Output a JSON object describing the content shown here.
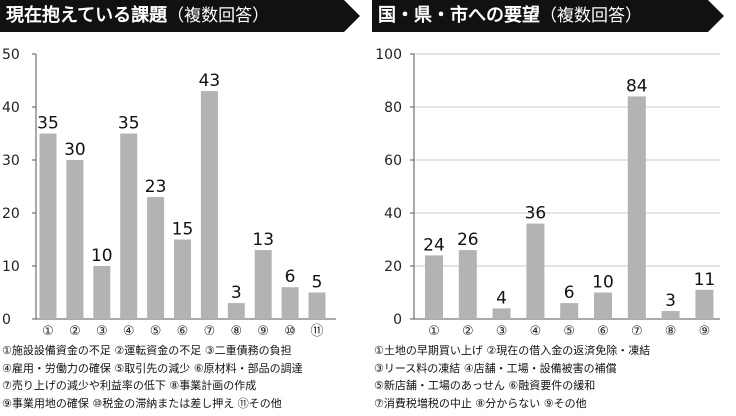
{
  "chart_data": [
    {
      "type": "bar",
      "title": "現在抱えている課題",
      "title_note": "（複数回答）",
      "categories": [
        "①",
        "②",
        "③",
        "④",
        "⑤",
        "⑥",
        "⑦",
        "⑧",
        "⑨",
        "⑩",
        "⑪"
      ],
      "values": [
        35,
        30,
        10,
        35,
        23,
        15,
        43,
        3,
        13,
        6,
        5
      ],
      "ylim": [
        0,
        50
      ],
      "yticks": [
        0,
        10,
        20,
        30,
        40,
        50
      ],
      "grid": false,
      "bar_color": "#b3b3b3",
      "notes": [
        "①施設設備資金の不足 ②運転資金の不足 ③二重債務の負担",
        "④雇用・労働力の確保 ⑤取引先の減少 ⑥原材料・部品の調達",
        "⑦売り上げの減少や利益率の低下 ⑧事業計画の作成",
        "⑨事業用地の確保 ⑩税金の滞納または差し押え ⑪その他"
      ]
    },
    {
      "type": "bar",
      "title": "国・県・市への要望",
      "title_note": "（複数回答）",
      "categories": [
        "①",
        "②",
        "③",
        "④",
        "⑤",
        "⑥",
        "⑦",
        "⑧",
        "⑨"
      ],
      "values": [
        24,
        26,
        4,
        36,
        6,
        10,
        84,
        3,
        11
      ],
      "ylim": [
        0,
        100
      ],
      "yticks": [
        0,
        20,
        40,
        60,
        80,
        100
      ],
      "grid": true,
      "bar_color": "#b3b3b3",
      "notes": [
        "①土地の早期買い上げ ②現在の借入金の返済免除・凍結",
        "③リース料の凍結 ④店舗・工場・設備被害の補償",
        "⑤新店舗・工場のあっせん ⑥融資要件の緩和",
        "⑦消費税増税の中止 ⑧分からない ⑨その他"
      ]
    }
  ]
}
